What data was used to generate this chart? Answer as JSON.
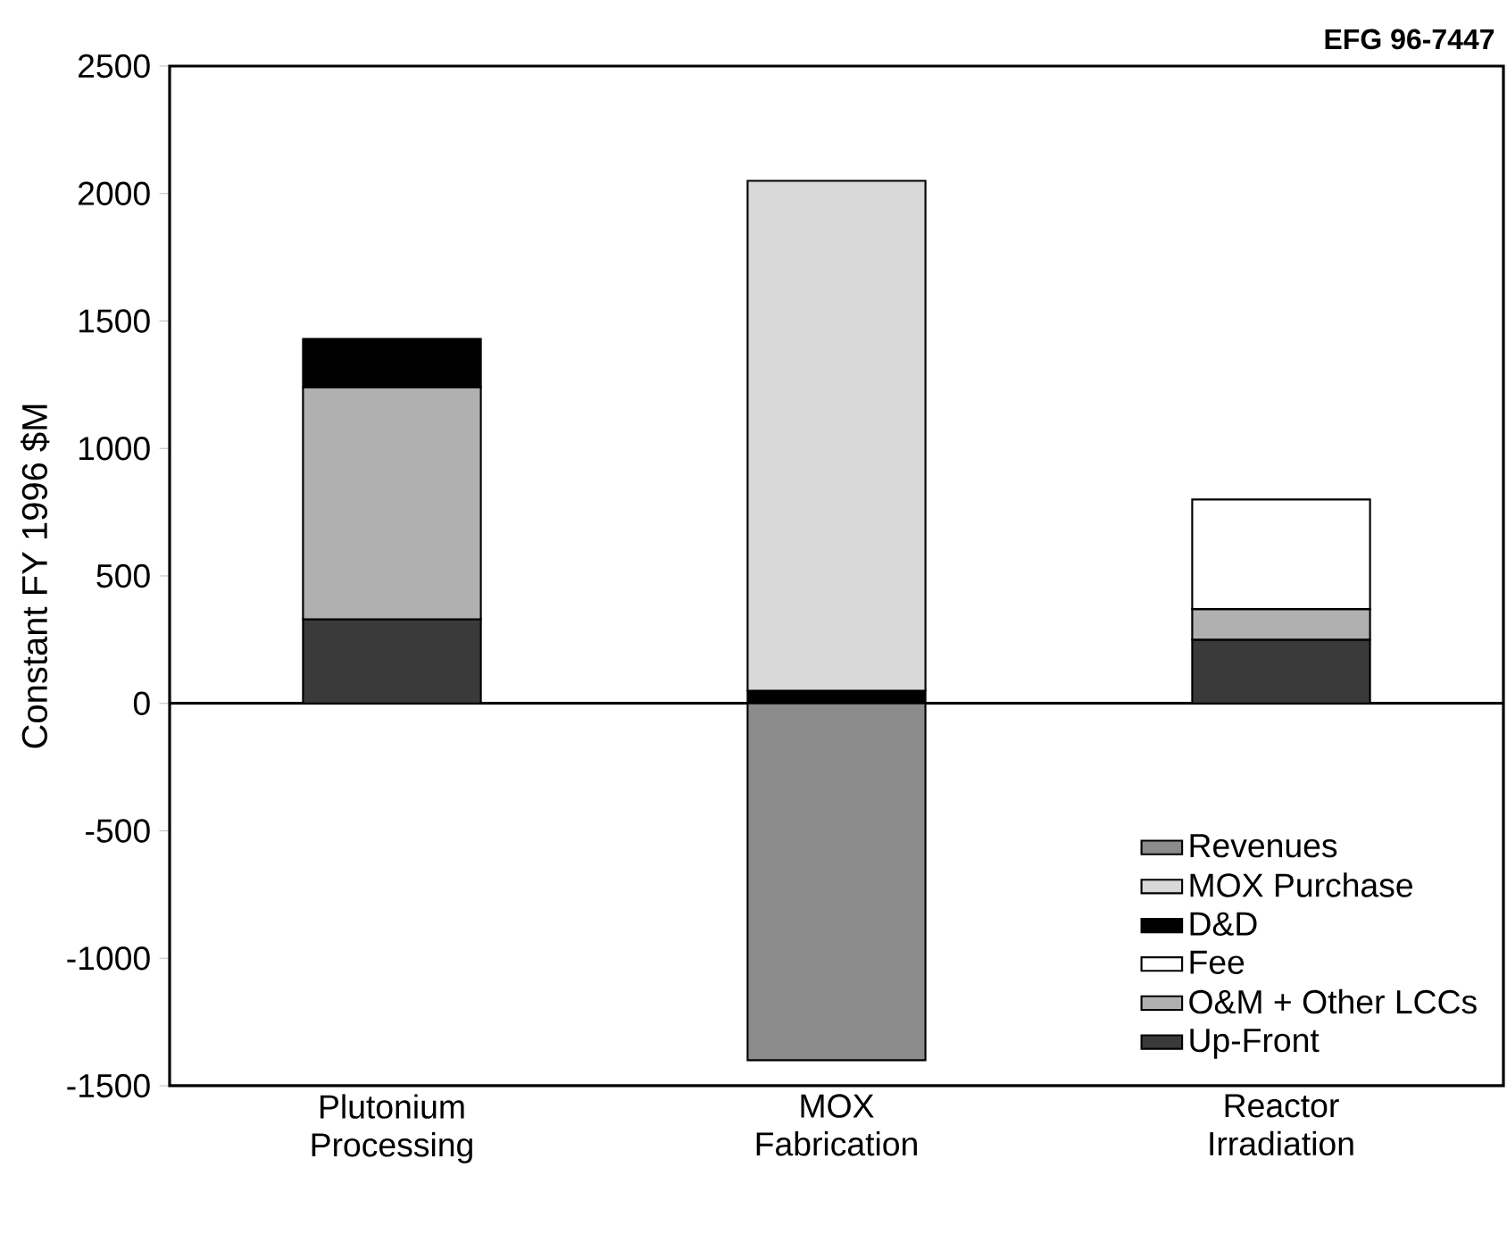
{
  "chart_data": {
    "type": "bar",
    "stacked": true,
    "ylabel": "Constant FY 1996 $M",
    "categories": [
      "Plutonium Processing",
      "MOX Fabrication",
      "Reactor Irradiation"
    ],
    "series": [
      {
        "name": "Up-Front",
        "color": "#3a3a3a",
        "values": [
          330,
          null,
          250
        ]
      },
      {
        "name": "O&M + Other LCCs",
        "color": "#b0b0b0",
        "values": [
          910,
          null,
          120
        ]
      },
      {
        "name": "Fee",
        "color": "#ffffff",
        "values": [
          null,
          null,
          430
        ]
      },
      {
        "name": "D&D",
        "color": "#000000",
        "values": [
          190,
          50,
          null
        ]
      },
      {
        "name": "MOX Purchase",
        "color": "#d8d8d8",
        "values": [
          null,
          2000,
          null
        ]
      },
      {
        "name": "Revenues",
        "color": "#8c8c8c",
        "values": [
          null,
          -1400,
          null
        ]
      }
    ],
    "ylim": [
      -1500,
      2500
    ],
    "yticks": [
      -1500,
      -1000,
      -500,
      0,
      500,
      1000,
      1500,
      2000,
      2500
    ],
    "ref_lines": [
      {
        "axis": "y",
        "value": 0
      }
    ],
    "legend": "bottom right",
    "grid": false,
    "annotations": [
      "EFG 96-7447"
    ]
  }
}
